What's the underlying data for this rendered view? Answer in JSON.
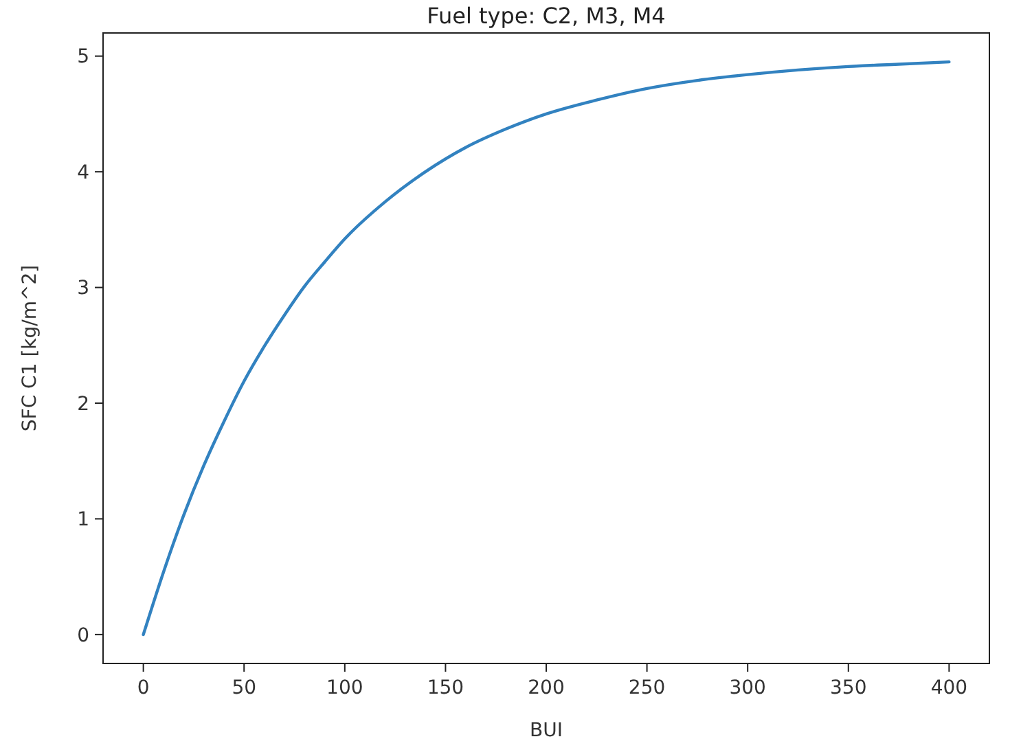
{
  "chart_data": {
    "type": "line",
    "title": "Fuel type: C2, M3, M4",
    "xlabel": "BUI",
    "ylabel": "SFC C1 [kg/m^2]",
    "x": [
      0,
      10,
      20,
      30,
      40,
      50,
      60,
      70,
      80,
      90,
      100,
      120,
      140,
      160,
      180,
      200,
      225,
      250,
      275,
      300,
      325,
      350,
      375,
      400
    ],
    "series": [
      {
        "color": "#3282c0",
        "values": [
          0,
          0.54,
          1.03,
          1.46,
          1.84,
          2.19,
          2.49,
          2.76,
          3.01,
          3.22,
          3.42,
          3.74,
          4.0,
          4.21,
          4.37,
          4.5,
          4.62,
          4.72,
          4.79,
          4.84,
          4.88,
          4.91,
          4.93,
          4.95
        ]
      }
    ],
    "xlim": [
      -20,
      420
    ],
    "ylim": [
      -0.25,
      5.2
    ],
    "xticks": [
      0,
      50,
      100,
      150,
      200,
      250,
      300,
      350,
      400
    ],
    "yticks": [
      0,
      1,
      2,
      3,
      4,
      5
    ],
    "grid": false,
    "line_style": "solid",
    "marker": "none"
  }
}
